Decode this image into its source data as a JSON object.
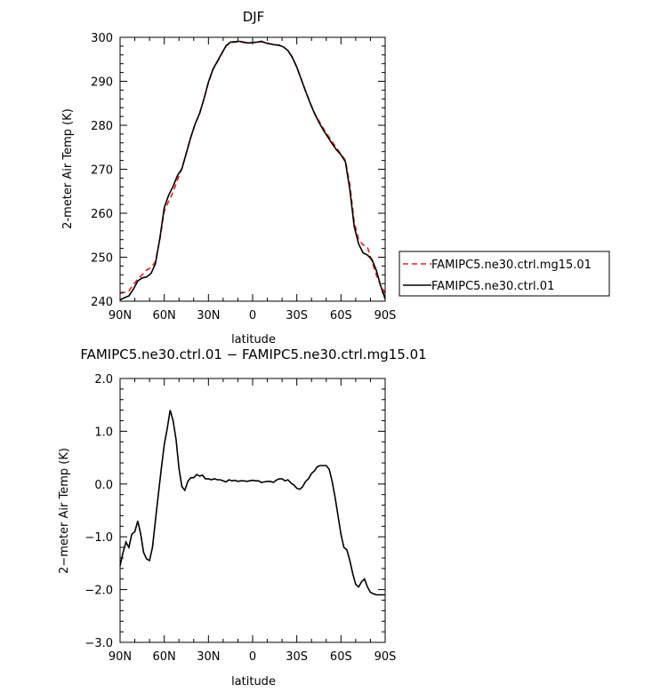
{
  "chart_data": [
    {
      "type": "line",
      "title": "DJF",
      "xlabel": "latitude",
      "ylabel": "2-meter Air Temp (K)",
      "xlim": [
        90,
        -90
      ],
      "ylim": [
        240,
        300
      ],
      "x_ticks": [
        {
          "value": 90,
          "label": "90N"
        },
        {
          "value": 60,
          "label": "60N"
        },
        {
          "value": 30,
          "label": "30N"
        },
        {
          "value": 0,
          "label": "0"
        },
        {
          "value": -30,
          "label": "30S"
        },
        {
          "value": -60,
          "label": "60S"
        },
        {
          "value": -90,
          "label": "90S"
        }
      ],
      "y_ticks": [
        {
          "value": 300,
          "label": "300"
        },
        {
          "value": 290,
          "label": "290"
        },
        {
          "value": 280,
          "label": "280"
        },
        {
          "value": 270,
          "label": "270"
        },
        {
          "value": 260,
          "label": "260"
        },
        {
          "value": 250,
          "label": "250"
        },
        {
          "value": 240,
          "label": "240"
        }
      ],
      "legend_position": "right",
      "series": [
        {
          "name": "FAMIPC5.ne30.ctrl.mg15.01",
          "color": "#e8211d",
          "dash": "dashed",
          "x": [
            90,
            87,
            84,
            81,
            78,
            75,
            72,
            69,
            66,
            63,
            60,
            57,
            54,
            51,
            48,
            45,
            42,
            39,
            36,
            33,
            30,
            27,
            24,
            21,
            18,
            15,
            12,
            9,
            6,
            3,
            0,
            -3,
            -6,
            -9,
            -12,
            -15,
            -18,
            -21,
            -24,
            -27,
            -30,
            -33,
            -36,
            -39,
            -42,
            -45,
            -48,
            -51,
            -54,
            -57,
            -60,
            -63,
            -66,
            -69,
            -72,
            -75,
            -78,
            -81,
            -84,
            -87,
            -90
          ],
          "y": [
            241.8,
            242.0,
            242.3,
            243.8,
            245.0,
            246.0,
            247.1,
            247.6,
            249.0,
            254.0,
            260.5,
            262.7,
            264.8,
            267.6,
            270.2,
            273.7,
            277.2,
            280.3,
            282.6,
            286.0,
            289.7,
            292.6,
            294.4,
            296.2,
            298.0,
            298.8,
            298.9,
            299.0,
            298.8,
            298.7,
            298.8,
            298.9,
            299.0,
            298.6,
            298.5,
            298.3,
            298.2,
            297.8,
            297.0,
            295.5,
            293.2,
            290.5,
            287.8,
            285.2,
            282.8,
            281.0,
            279.3,
            277.8,
            276.3,
            274.8,
            273.5,
            272.0,
            266.5,
            258.0,
            254.0,
            252.8,
            252.3,
            249.0,
            246.0,
            243.5,
            242.0
          ]
        },
        {
          "name": "FAMIPC5.ne30.ctrl.01",
          "color": "#000000",
          "dash": "solid",
          "x": [
            90,
            87,
            84,
            81,
            78,
            75,
            72,
            69,
            66,
            63,
            60,
            57,
            54,
            51,
            48,
            45,
            42,
            39,
            36,
            33,
            30,
            27,
            24,
            21,
            18,
            15,
            12,
            9,
            6,
            3,
            0,
            -3,
            -6,
            -9,
            -12,
            -15,
            -18,
            -21,
            -24,
            -27,
            -30,
            -33,
            -36,
            -39,
            -42,
            -45,
            -48,
            -51,
            -54,
            -57,
            -60,
            -63,
            -66,
            -69,
            -72,
            -75,
            -78,
            -81,
            -84,
            -87,
            -90
          ],
          "y": [
            240.3,
            240.8,
            241.2,
            242.7,
            244.6,
            245.3,
            245.5,
            246.3,
            248.5,
            254.3,
            261.3,
            264.1,
            266.1,
            268.6,
            270.1,
            273.7,
            277.3,
            280.3,
            282.7,
            286.1,
            289.8,
            292.7,
            294.5,
            296.3,
            298.1,
            298.9,
            299.0,
            299.1,
            298.9,
            298.7,
            298.8,
            298.9,
            299.1,
            298.7,
            298.5,
            298.3,
            298.2,
            297.8,
            297.0,
            295.4,
            293.2,
            290.5,
            287.7,
            285.1,
            282.7,
            280.7,
            278.9,
            277.4,
            275.8,
            274.4,
            273.3,
            271.7,
            265.4,
            257.0,
            253.0,
            251.0,
            250.5,
            249.5,
            247.0,
            243.5,
            240.5
          ]
        }
      ]
    },
    {
      "type": "line",
      "title": "FAMIPC5.ne30.ctrl.01 − FAMIPC5.ne30.ctrl.mg15.01",
      "xlabel": "latitude",
      "ylabel": "2−meter Air Temp (K)",
      "xlim": [
        90,
        -90
      ],
      "ylim": [
        -3.0,
        2.0
      ],
      "x_ticks": [
        {
          "value": 90,
          "label": "90N"
        },
        {
          "value": 60,
          "label": "60N"
        },
        {
          "value": 30,
          "label": "30N"
        },
        {
          "value": 0,
          "label": "0"
        },
        {
          "value": -30,
          "label": "30S"
        },
        {
          "value": -60,
          "label": "60S"
        },
        {
          "value": -90,
          "label": "90S"
        }
      ],
      "y_ticks": [
        {
          "value": 2.0,
          "label": "2.0"
        },
        {
          "value": 1.0,
          "label": "1.0"
        },
        {
          "value": 0.0,
          "label": "0.0"
        },
        {
          "value": -1.0,
          "label": "−1.0"
        },
        {
          "value": -2.0,
          "label": "−2.0"
        },
        {
          "value": -3.0,
          "label": "−3.0"
        }
      ],
      "series": [
        {
          "color": "#000000",
          "dash": "solid",
          "x": [
            90,
            88,
            86,
            84,
            82,
            80,
            78,
            76,
            74,
            72,
            70,
            68,
            66,
            64,
            62,
            60,
            58,
            56,
            54,
            52,
            50,
            48,
            46,
            44,
            42,
            40,
            38,
            36,
            34,
            32,
            30,
            28,
            26,
            24,
            22,
            20,
            18,
            16,
            14,
            12,
            10,
            8,
            6,
            4,
            2,
            0,
            -2,
            -4,
            -6,
            -8,
            -10,
            -12,
            -14,
            -16,
            -18,
            -20,
            -22,
            -24,
            -26,
            -28,
            -30,
            -32,
            -34,
            -36,
            -38,
            -40,
            -42,
            -44,
            -46,
            -48,
            -50,
            -52,
            -54,
            -56,
            -58,
            -60,
            -62,
            -64,
            -66,
            -68,
            -70,
            -72,
            -74,
            -76,
            -78,
            -80,
            -82,
            -84,
            -86,
            -88,
            -90
          ],
          "y": [
            -1.55,
            -1.3,
            -1.1,
            -1.2,
            -0.95,
            -0.9,
            -0.7,
            -0.95,
            -1.3,
            -1.42,
            -1.45,
            -1.2,
            -0.7,
            -0.2,
            0.3,
            0.75,
            1.05,
            1.4,
            1.2,
            0.85,
            0.3,
            -0.05,
            -0.12,
            0.05,
            0.12,
            0.12,
            0.18,
            0.15,
            0.17,
            0.1,
            0.1,
            0.08,
            0.1,
            0.08,
            0.08,
            0.06,
            0.04,
            0.08,
            0.06,
            0.07,
            0.05,
            0.06,
            0.06,
            0.05,
            0.06,
            0.07,
            0.06,
            0.06,
            0.03,
            0.04,
            0.05,
            0.05,
            0.03,
            0.07,
            0.1,
            0.1,
            0.06,
            0.08,
            0.02,
            -0.02,
            -0.08,
            -0.1,
            -0.05,
            0.05,
            0.1,
            0.2,
            0.25,
            0.33,
            0.35,
            0.35,
            0.35,
            0.28,
            0.05,
            -0.25,
            -0.6,
            -0.95,
            -1.2,
            -1.25,
            -1.45,
            -1.7,
            -1.9,
            -1.95,
            -1.85,
            -1.8,
            -1.95,
            -2.05,
            -2.08,
            -2.1,
            -2.1,
            -2.1,
            -2.1
          ]
        }
      ]
    }
  ]
}
